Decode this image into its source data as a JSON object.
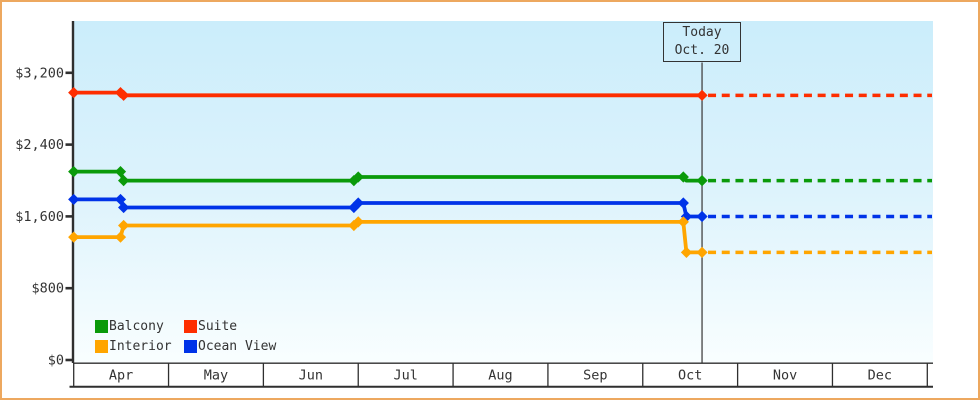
{
  "window": {
    "kind": "cruise-cabin-price-history-chart",
    "border_color": "#eda85f",
    "background": "#ffffff"
  },
  "colors": {
    "axis": "#2f2f2f",
    "text": "#333333",
    "plot_bg_top": "#cbedfb",
    "plot_bg_mid": "#ddf3fc",
    "plot_bg_bottom": "#f9feff"
  },
  "chart_data": {
    "type": "line",
    "title": "",
    "y_axis": {
      "tick_labels": [
        "$0",
        "$800",
        "$1,600",
        "$2,400",
        "$3,200"
      ],
      "tick_values": [
        0,
        800,
        1600,
        2400,
        3200
      ],
      "ylim": [
        0,
        3780
      ],
      "grid": false
    },
    "x_axis": {
      "months": [
        "Apr",
        "May",
        "Jun",
        "Jul",
        "Aug",
        "Sep",
        "Oct",
        "Nov",
        "Dec"
      ]
    },
    "today": {
      "box_lines": [
        "Today",
        "Oct. 20"
      ],
      "month": "Oct",
      "day": 20
    },
    "forecast_style": "dotted-after-today",
    "series": [
      {
        "name": "Suite",
        "color": "#fe2e00",
        "points": [
          {
            "month": "Apr",
            "day": 1,
            "price": 2979,
            "marker": true
          },
          {
            "month": "Apr",
            "day": 16,
            "price": 2979,
            "marker": true
          },
          {
            "month": "Apr",
            "day": 17,
            "price": 2949,
            "marker": true
          },
          {
            "month": "Oct",
            "day": 20,
            "price": 2949,
            "marker": true
          }
        ],
        "forecast_price": 2949
      },
      {
        "name": "Balcony",
        "color": "#0a9a0a",
        "points": [
          {
            "month": "Apr",
            "day": 1,
            "price": 2099,
            "marker": true
          },
          {
            "month": "Apr",
            "day": 16,
            "price": 2099,
            "marker": true
          },
          {
            "month": "Apr",
            "day": 17,
            "price": 1999,
            "marker": true
          },
          {
            "month": "Jun",
            "day": 30,
            "price": 1999,
            "marker": true
          },
          {
            "month": "Jul",
            "day": 1,
            "price": 2039,
            "marker": true
          },
          {
            "month": "Oct",
            "day": 14,
            "price": 2039,
            "marker": true
          },
          {
            "month": "Oct",
            "day": 15,
            "price": 1999,
            "marker": false
          },
          {
            "month": "Oct",
            "day": 20,
            "price": 1999,
            "marker": true
          }
        ],
        "forecast_price": 1999
      },
      {
        "name": "Ocean View",
        "color": "#0033e8",
        "points": [
          {
            "month": "Apr",
            "day": 1,
            "price": 1789,
            "marker": true
          },
          {
            "month": "Apr",
            "day": 16,
            "price": 1789,
            "marker": true
          },
          {
            "month": "Apr",
            "day": 17,
            "price": 1699,
            "marker": true
          },
          {
            "month": "Jun",
            "day": 30,
            "price": 1699,
            "marker": true
          },
          {
            "month": "Jul",
            "day": 1,
            "price": 1749,
            "marker": true
          },
          {
            "month": "Oct",
            "day": 14,
            "price": 1749,
            "marker": true
          },
          {
            "month": "Oct",
            "day": 15,
            "price": 1599,
            "marker": true
          },
          {
            "month": "Oct",
            "day": 20,
            "price": 1599,
            "marker": true
          }
        ],
        "forecast_price": 1599
      },
      {
        "name": "Interior",
        "color": "#ffa500",
        "points": [
          {
            "month": "Apr",
            "day": 1,
            "price": 1369,
            "marker": true
          },
          {
            "month": "Apr",
            "day": 16,
            "price": 1369,
            "marker": true
          },
          {
            "month": "Apr",
            "day": 17,
            "price": 1499,
            "marker": true
          },
          {
            "month": "Jun",
            "day": 30,
            "price": 1499,
            "marker": true
          },
          {
            "month": "Jul",
            "day": 1,
            "price": 1539,
            "marker": true
          },
          {
            "month": "Oct",
            "day": 14,
            "price": 1539,
            "marker": true
          },
          {
            "month": "Oct",
            "day": 15,
            "price": 1199,
            "marker": true
          },
          {
            "month": "Oct",
            "day": 20,
            "price": 1199,
            "marker": true
          }
        ],
        "forecast_price": 1199
      }
    ],
    "legend": {
      "position": "bottom-left",
      "items": [
        "Balcony",
        "Suite",
        "Interior",
        "Ocean View"
      ]
    }
  }
}
